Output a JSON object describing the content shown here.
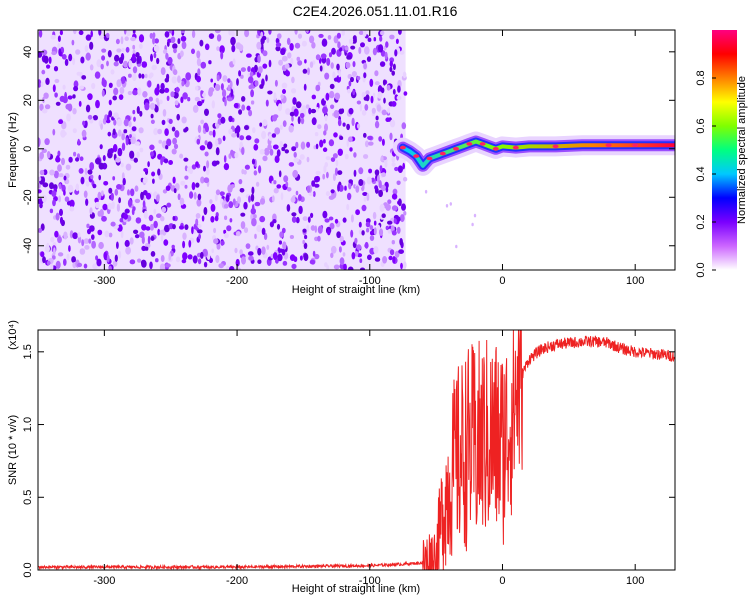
{
  "title": "C2E4.2026.051.11.01.R16",
  "chart_data": [
    {
      "type": "heatmap",
      "xlabel": "Height of straight line (km)",
      "ylabel": "Frequency (Hz)",
      "xlim": [
        -350,
        130
      ],
      "ylim": [
        -50,
        49
      ],
      "x_ticks": [
        -300,
        -200,
        -100,
        0,
        100
      ],
      "y_ticks": [
        -40,
        -20,
        0,
        20,
        40
      ],
      "noise_region_x": [
        -350,
        -73
      ],
      "signal_ridge": {
        "x": [
          -75,
          -70,
          -65,
          -60,
          -55,
          -50,
          -45,
          -40,
          -35,
          -30,
          -25,
          -20,
          -15,
          -10,
          -5,
          0,
          10,
          20,
          40,
          60,
          80,
          90,
          100,
          130
        ],
        "y": [
          0.5,
          -1,
          -3,
          -7,
          -4,
          -3,
          -2,
          -1,
          0,
          1,
          2,
          3,
          2,
          1,
          0,
          1,
          0.5,
          1,
          1,
          1.5,
          1.5,
          1.5,
          1.5,
          1.5
        ]
      },
      "colorbar": {
        "label": "Normalized spectral amplitude",
        "range": [
          0,
          1
        ],
        "ticks": [
          0.0,
          0.2,
          0.4,
          0.6,
          0.8
        ],
        "colors": [
          "#ffffff",
          "#cc66ff",
          "#7a00ff",
          "#0000ff",
          "#00c8ff",
          "#00ff80",
          "#80ff00",
          "#ffff00",
          "#ff8000",
          "#ff0000",
          "#ff0080"
        ]
      }
    },
    {
      "type": "line",
      "xlabel": "Height of straight line (km)",
      "ylabel": "SNR (10 * v/v)",
      "multiplier_label": "(x10⁴)",
      "xlim": [
        -350,
        130
      ],
      "ylim": [
        0,
        1.65
      ],
      "x_ticks": [
        -300,
        -200,
        -100,
        0,
        100
      ],
      "y_ticks": [
        0.0,
        0.5,
        1.0,
        1.5
      ],
      "series": [
        {
          "color": "#ee2222",
          "x": [
            -350,
            -300,
            -250,
            -200,
            -150,
            -100,
            -75,
            -60,
            -50,
            -45,
            -40,
            -35,
            -30,
            -25,
            -20,
            -15,
            -10,
            -5,
            0,
            5,
            10,
            15,
            20,
            30,
            40,
            50,
            60,
            70,
            80,
            90,
            100,
            110,
            120,
            130
          ],
          "y": [
            0.02,
            0.02,
            0.02,
            0.02,
            0.025,
            0.03,
            0.04,
            0.05,
            0.1,
            0.4,
            0.6,
            0.75,
            0.8,
            0.85,
            0.85,
            0.9,
            0.9,
            0.9,
            0.85,
            1.0,
            1.2,
            1.35,
            1.45,
            1.52,
            1.55,
            1.56,
            1.57,
            1.57,
            1.56,
            1.52,
            1.5,
            1.49,
            1.48,
            1.47
          ]
        }
      ]
    }
  ]
}
